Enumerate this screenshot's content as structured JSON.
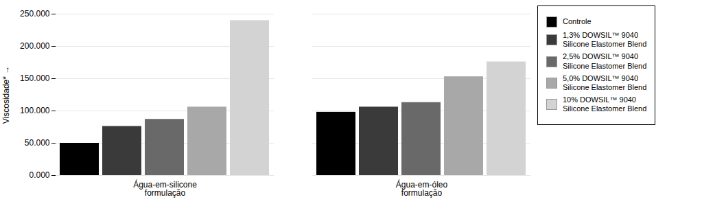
{
  "chart_data": {
    "type": "bar",
    "categories": [
      "Água-em-silicone\nformulação",
      "Água-em-óleo\nformulação"
    ],
    "series": [
      {
        "name": "Controle",
        "color": "#000000",
        "values": [
          50000,
          98000
        ]
      },
      {
        "name": "1,3% DOWSIL™ 9040\nSilicone Elastomer Blend",
        "color": "#3a3a3a",
        "values": [
          76000,
          106000
        ]
      },
      {
        "name": "2,5% DOWSIL™ 9040\nSilicone Elastomer Blend",
        "color": "#696969",
        "values": [
          87000,
          113000
        ]
      },
      {
        "name": "5,0% DOWSIL™ 9040\nSilicone Elastomer Blend",
        "color": "#a8a8a8",
        "values": [
          106000,
          153000
        ]
      },
      {
        "name": "10% DOWSIL™ 9040\nSilicone Elastomer Blend",
        "color": "#d3d3d3",
        "values": [
          240000,
          176000
        ]
      }
    ],
    "ylabel": "Viscosidade*",
    "ylim": [
      0,
      250000
    ],
    "yticks": [
      {
        "value": 0,
        "label": "0.000"
      },
      {
        "value": 50000,
        "label": "50.000"
      },
      {
        "value": 100000,
        "label": "100.000"
      },
      {
        "value": 150000,
        "label": "150.000"
      },
      {
        "value": 200000,
        "label": "200.000"
      },
      {
        "value": 250000,
        "label": "250.000"
      }
    ],
    "grid": true,
    "legend": "right"
  }
}
